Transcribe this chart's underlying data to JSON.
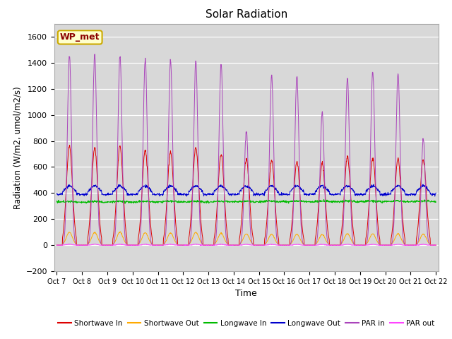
{
  "title": "Solar Radiation",
  "ylabel": "Radiation (W/m2, umol/m2/s)",
  "xlabel": "Time",
  "ylim": [
    -200,
    1700
  ],
  "yticks": [
    -200,
    0,
    200,
    400,
    600,
    800,
    1000,
    1200,
    1400,
    1600
  ],
  "x_labels": [
    "Oct 7",
    "Oct 8",
    "Oct 9",
    "Oct 10",
    "Oct 11",
    "Oct 12",
    "Oct 13",
    "Oct 14",
    "Oct 15",
    "Oct 16",
    "Oct 17",
    "Oct 18",
    "Oct 19",
    "Oct 20",
    "Oct 21",
    "Oct 22"
  ],
  "plot_bg": "#d8d8d8",
  "fig_bg": "#ffffff",
  "grid_color": "#ffffff",
  "colors": {
    "sw_in": "#dd0000",
    "sw_out": "#ffaa00",
    "lw_in": "#00bb00",
    "lw_out": "#0000cc",
    "par_in": "#aa44bb",
    "par_out": "#ff44ff"
  },
  "annotation_text": "WP_met",
  "annotation_facecolor": "#ffffcc",
  "annotation_edgecolor": "#ccaa00",
  "sw_in_peaks": [
    760,
    745,
    760,
    730,
    720,
    750,
    700,
    660,
    650,
    640,
    630,
    680,
    670,
    660,
    660
  ],
  "par_in_peaks": [
    1460,
    1460,
    1460,
    1430,
    1420,
    1410,
    1390,
    880,
    1300,
    1300,
    1020,
    1280,
    1340,
    1320,
    820
  ],
  "lw_in_base": 340,
  "lw_out_base": 390,
  "n_days": 15,
  "pts_per_day": 96
}
